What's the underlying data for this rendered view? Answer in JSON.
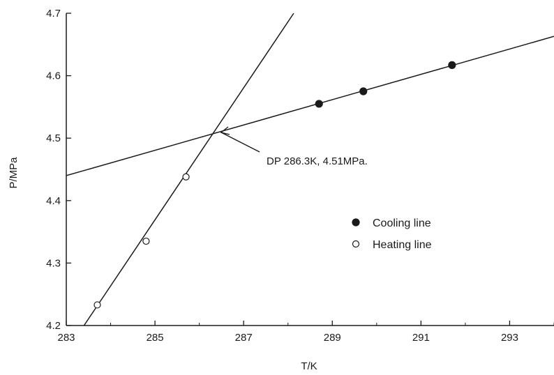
{
  "chart_data": {
    "type": "scatter",
    "xlabel": "T/K",
    "ylabel": "P/MPa",
    "xlim": [
      283,
      294
    ],
    "ylim": [
      4.2,
      4.7
    ],
    "x_ticks": [
      "283",
      "285",
      "287",
      "289",
      "291",
      "293"
    ],
    "y_ticks": [
      "4.2",
      "4.3",
      "4.4",
      "4.5",
      "4.6",
      "4.7"
    ],
    "grid": false,
    "legend_position": "right",
    "series": [
      {
        "name": "Cooling line",
        "marker": "filled-circle",
        "points": [
          {
            "x": 288.7,
            "y": 4.555
          },
          {
            "x": 289.7,
            "y": 4.575
          },
          {
            "x": 291.7,
            "y": 4.617
          }
        ],
        "fit_line": [
          [
            283,
            4.44
          ],
          [
            294,
            4.663
          ]
        ]
      },
      {
        "name": "Heating line",
        "marker": "open-circle",
        "points": [
          {
            "x": 283.7,
            "y": 4.233
          },
          {
            "x": 284.8,
            "y": 4.335
          },
          {
            "x": 285.7,
            "y": 4.438
          }
        ],
        "fit_line": [
          [
            283.4,
            4.2
          ],
          [
            288.13,
            4.7
          ]
        ]
      }
    ],
    "annotation": {
      "text": "DP 286.3K, 4.51MPa.",
      "point": {
        "x": 286.3,
        "y": 4.51
      }
    }
  }
}
